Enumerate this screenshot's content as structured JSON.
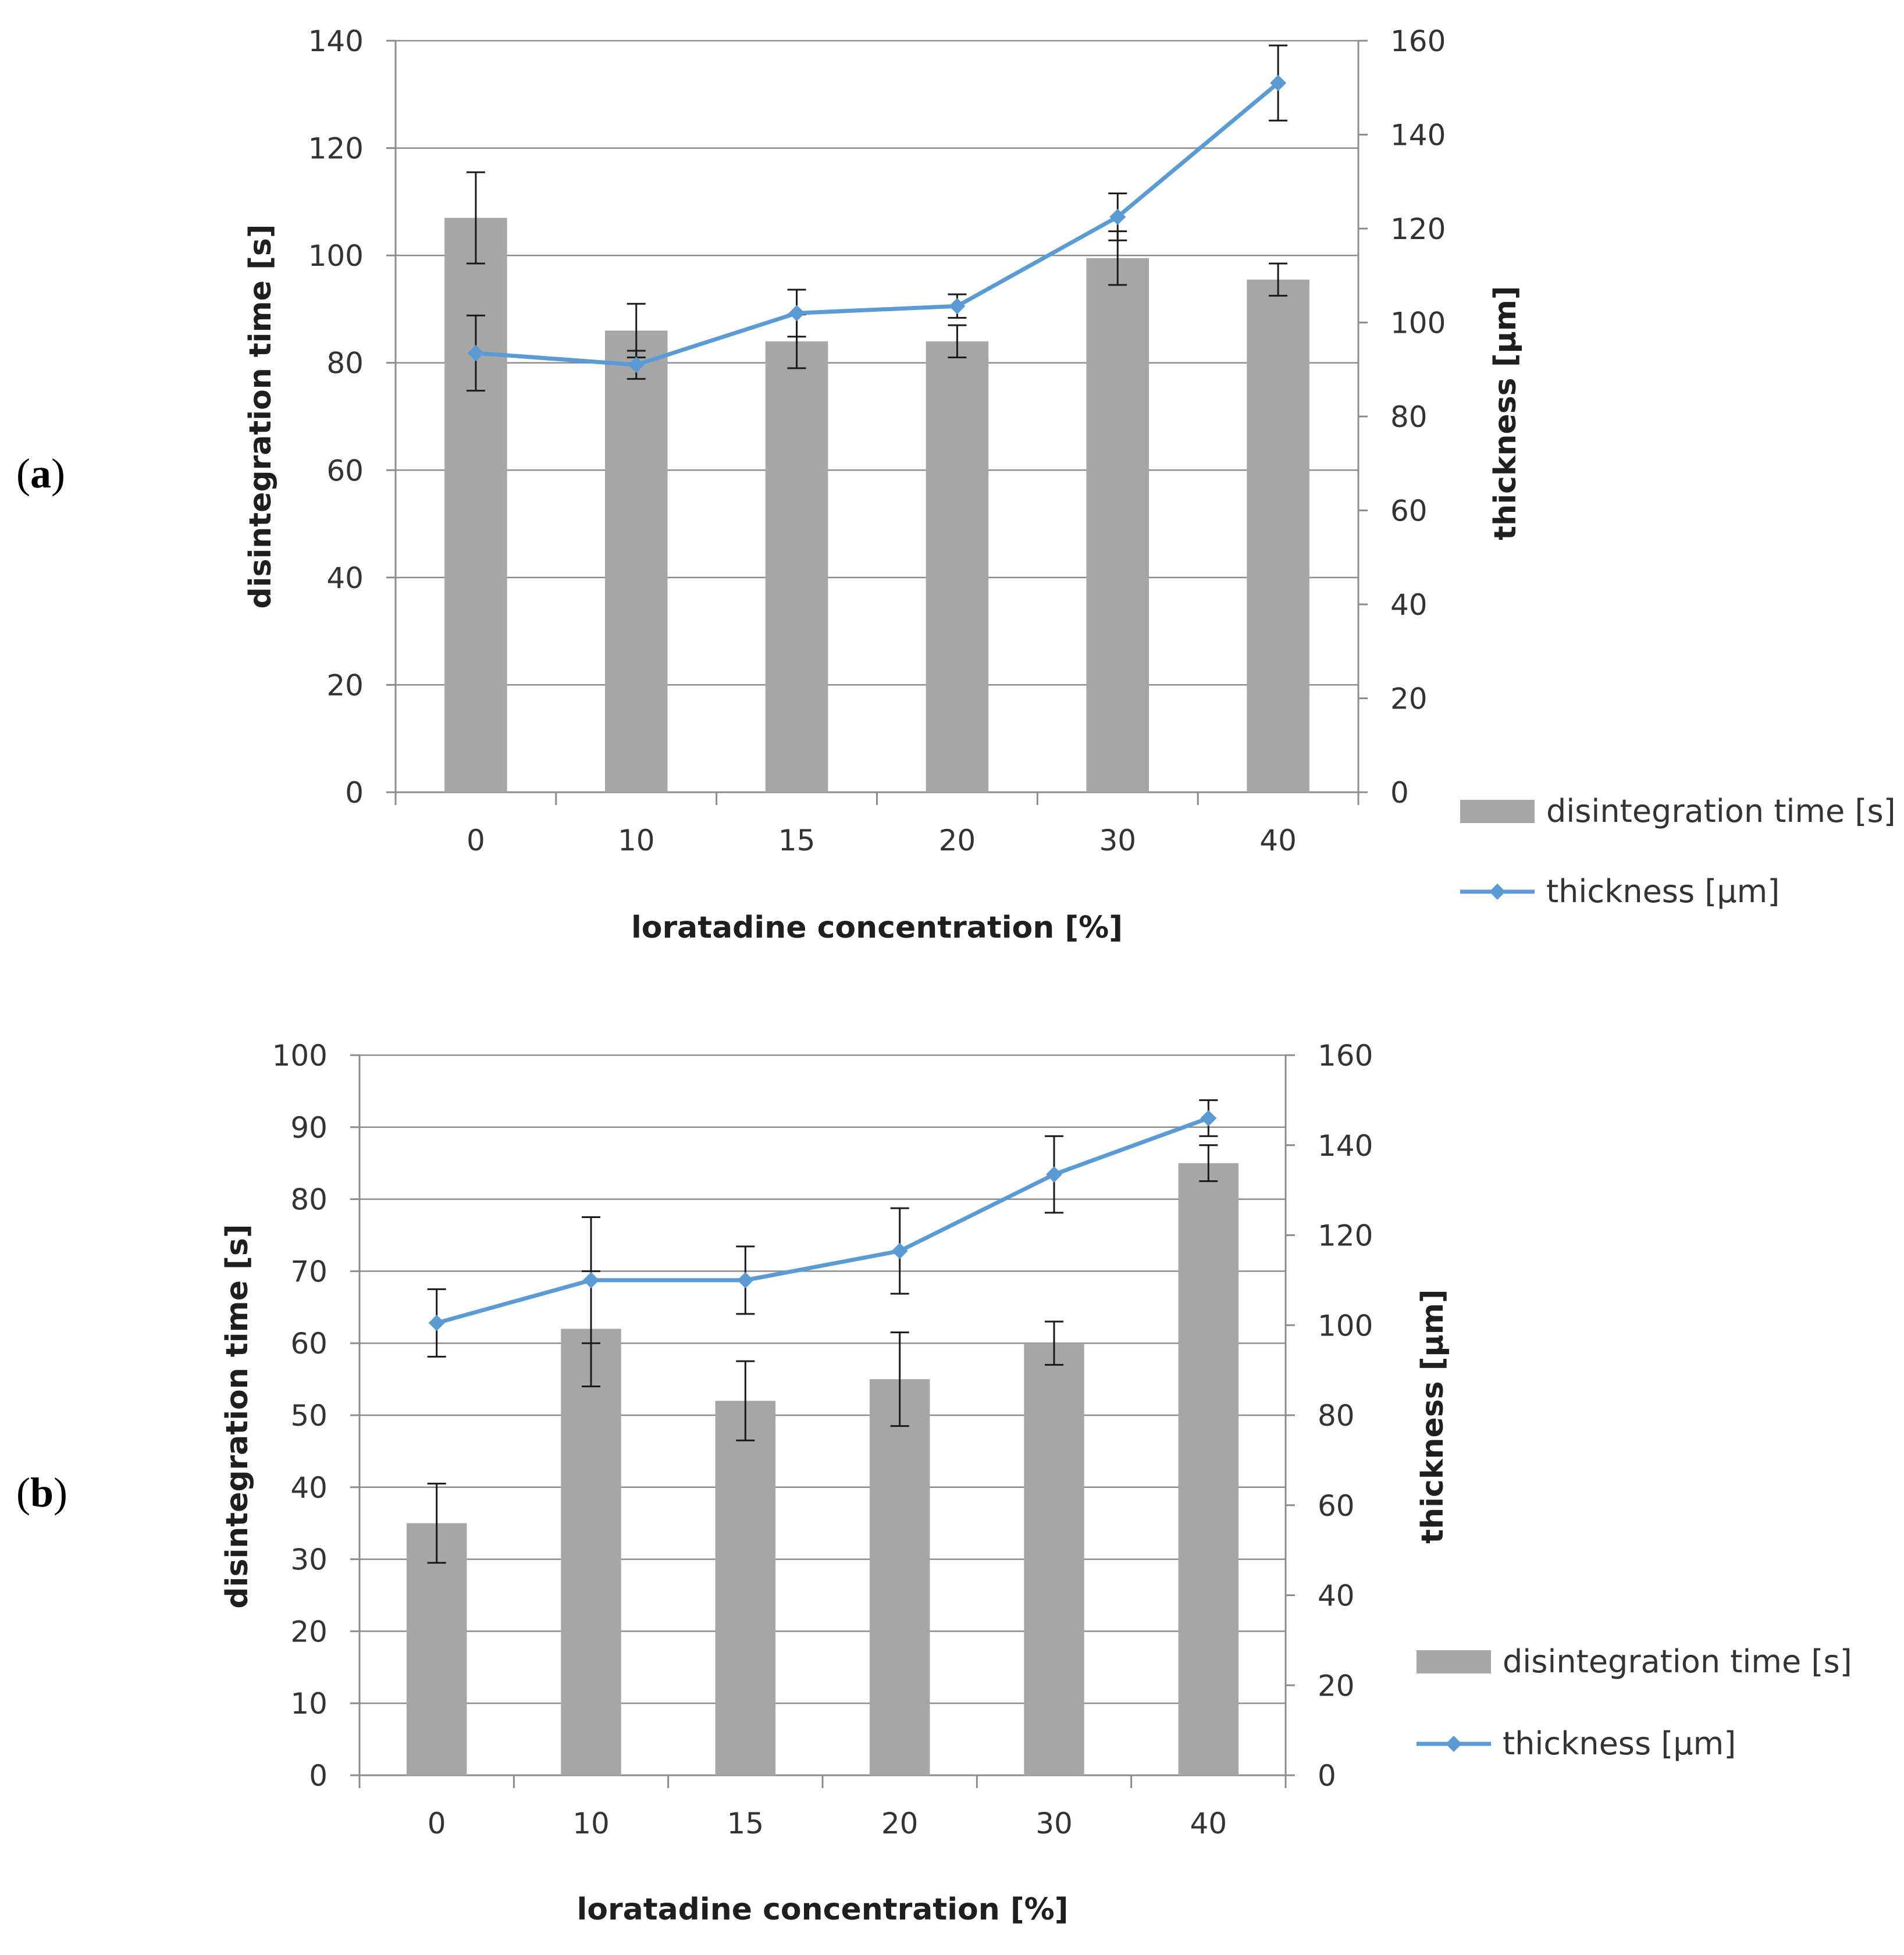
{
  "chart_data": [
    {
      "type": "bar",
      "panel_label": "a",
      "categories": [
        "0",
        "10",
        "15",
        "20",
        "30",
        "40"
      ],
      "xlabel": "loratadine concentration [%]",
      "ylabel": "disintegration time [s]",
      "y2label": "thickness [μm]",
      "ylim": [
        0,
        140
      ],
      "yticks": [
        0,
        20,
        40,
        60,
        80,
        100,
        120,
        140
      ],
      "y2lim": [
        0,
        160
      ],
      "y2ticks": [
        0,
        20,
        40,
        60,
        80,
        100,
        120,
        140,
        160
      ],
      "grid": true,
      "legend_position": "right-bottom",
      "series": [
        {
          "name": "disintegration time [s]",
          "type": "bar",
          "axis": "left",
          "color": "#a6a6a6",
          "values": [
            107,
            86,
            84,
            84,
            99.5,
            95.5
          ],
          "errors": [
            8.5,
            5,
            5,
            3,
            5,
            3
          ]
        },
        {
          "name": "thickness [μm]",
          "type": "line",
          "axis": "right",
          "color": "#5b9bd5",
          "marker": "diamond",
          "values": [
            93.5,
            91,
            102,
            103.5,
            122.5,
            151
          ],
          "errors": [
            8,
            3,
            5,
            2.5,
            5,
            8
          ]
        }
      ]
    },
    {
      "type": "bar",
      "panel_label": "b",
      "categories": [
        "0",
        "10",
        "15",
        "20",
        "30",
        "40"
      ],
      "xlabel": "loratadine concentration [%]",
      "ylabel": "disintegration time [s]",
      "y2label": "thickness [μm]",
      "ylim": [
        0,
        100
      ],
      "yticks": [
        0,
        10,
        20,
        30,
        40,
        50,
        60,
        70,
        80,
        90,
        100
      ],
      "y2lim": [
        0,
        160
      ],
      "y2ticks": [
        0,
        20,
        40,
        60,
        80,
        100,
        120,
        140,
        160
      ],
      "grid": true,
      "legend_position": "right-bottom",
      "series": [
        {
          "name": "disintegration time [s]",
          "type": "bar",
          "axis": "left",
          "color": "#a6a6a6",
          "values": [
            35,
            62,
            52,
            55,
            60,
            85
          ],
          "errors": [
            5.5,
            8,
            5.5,
            6.5,
            3,
            2.5
          ]
        },
        {
          "name": "thickness [μm]",
          "type": "line",
          "axis": "right",
          "color": "#5b9bd5",
          "marker": "diamond",
          "values": [
            100.5,
            110,
            110,
            116.5,
            133.5,
            146
          ],
          "errors": [
            7.5,
            14,
            7.5,
            9.5,
            8.5,
            4
          ]
        }
      ]
    }
  ]
}
